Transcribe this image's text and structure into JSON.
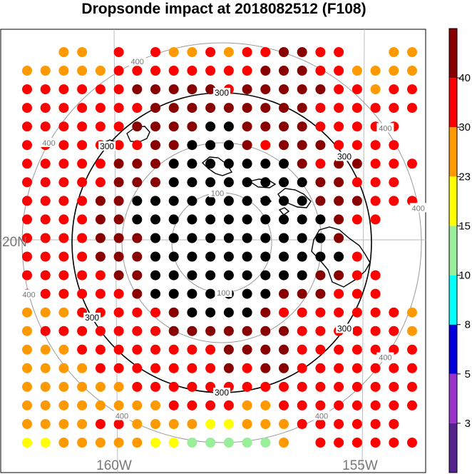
{
  "chart_data": {
    "type": "scatter",
    "title": "Dropsonde impact at 2018082512 (F108)",
    "rings": [
      {
        "value": 100,
        "labels": [
          "100",
          "100"
        ]
      },
      {
        "value": 200,
        "labels": []
      },
      {
        "value": 300,
        "labels": [
          "300",
          "300",
          "300",
          "300",
          "300",
          "300"
        ]
      },
      {
        "value": 400,
        "labels": [
          "400",
          "400",
          "400",
          "400",
          "400",
          "400",
          "400",
          "400"
        ]
      }
    ],
    "geo_labels": {
      "lat": [
        "20N"
      ],
      "lon": [
        "160W",
        "155W"
      ]
    },
    "colorbar": {
      "levels": [
        "3",
        "5",
        "8",
        "10",
        "15",
        "23",
        "30",
        "40"
      ],
      "colors": [
        "#55228e",
        "#9933cc",
        "#0000dd",
        "#00ffff",
        "#99ee99",
        "#ffff00",
        "#ff9900",
        "#ff0000",
        "#880000"
      ]
    },
    "grid": {
      "rows": 22,
      "cols": 22,
      "dot_classes": [
        "..66.7.76676778877..66",
        "6666677777777888776666",
        "7777778888878888877677",
        "7777777888888888777777",
        "777777888899888877777.",
        "777777788999878887777.",
        "7777788899999998788777",
        "777778889999999988777.",
        "7777889999999999888777",
        "77778899999999999877..",
        "777788899999999998....",
        "7777888999999999997...",
        "77777889999999998877..",
        "77777789999999888777..",
        "6667777789999877777776",
        "6777777788888887777776",
        "6667777777788887777777",
        "6666777777787887777777",
        "6666667777777777777777",
        "6666666677776677777777",
        "666677666655666777777.",
        "556666655444446.777777"
      ]
    }
  }
}
